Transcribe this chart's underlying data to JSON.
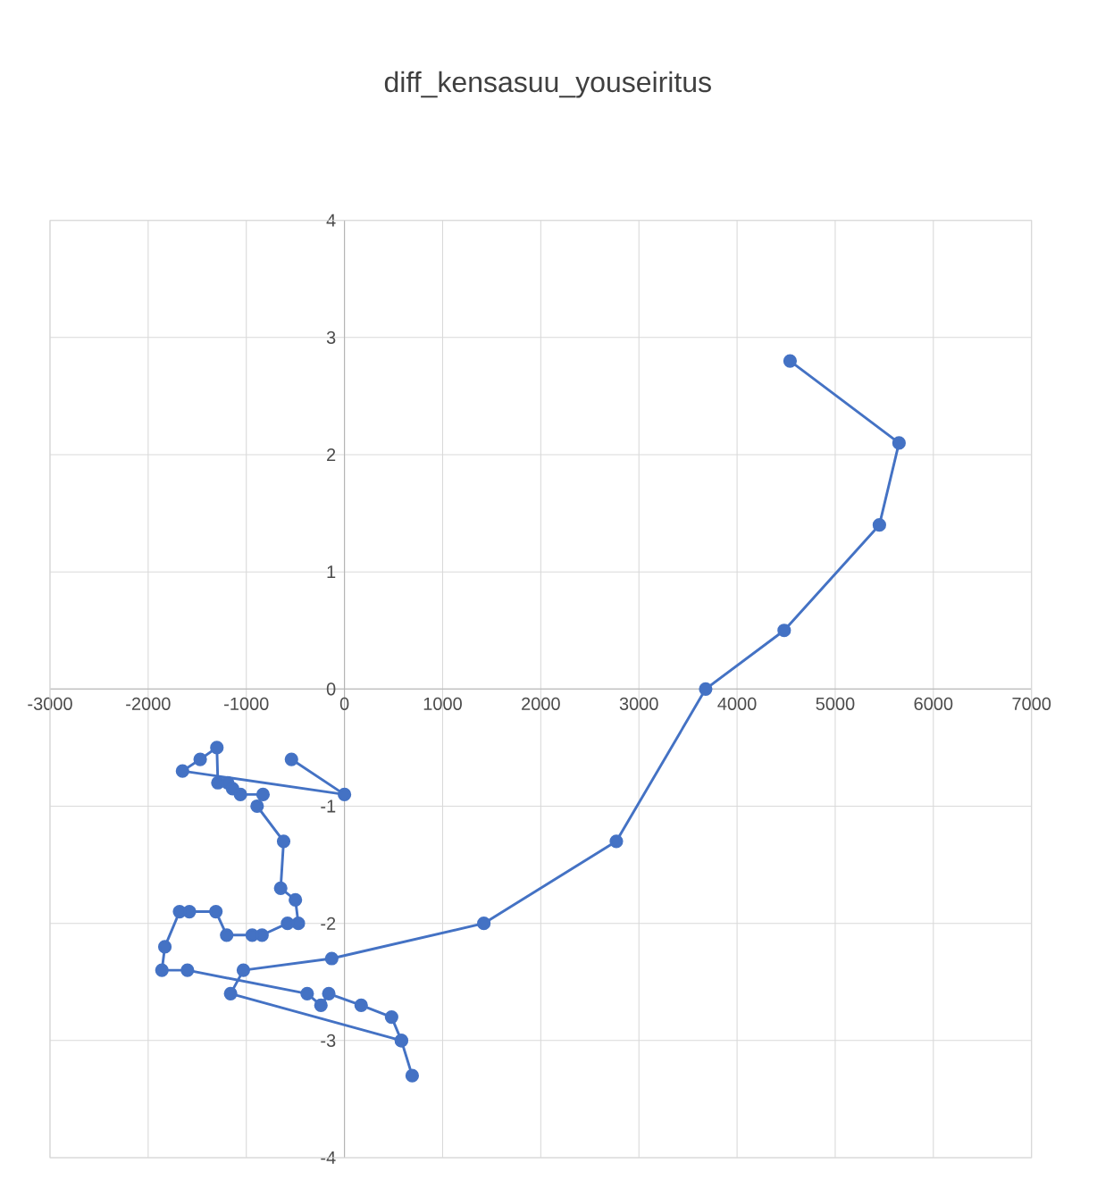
{
  "chart_data": {
    "type": "line",
    "title": "diff_kensasuu_youseiritus",
    "x": [
      -540,
      0,
      -1650,
      -1470,
      -1300,
      -1290,
      -1190,
      -1140,
      -1060,
      -830,
      -890,
      -620,
      -650,
      -500,
      -470,
      -580,
      -840,
      -940,
      -1200,
      -1310,
      -1580,
      -1680,
      -1830,
      -1860,
      -1600,
      -380,
      -240,
      -160,
      170,
      480,
      580,
      690,
      580,
      -1160,
      -1030,
      -130,
      1420,
      2770,
      3680,
      4480,
      5450,
      5650,
      4540
    ],
    "series": [
      {
        "color": "#4472c4",
        "values": [
          -0.6,
          -0.9,
          -0.7,
          -0.6,
          -0.5,
          -0.8,
          -0.8,
          -0.85,
          -0.9,
          -0.9,
          -1.0,
          -1.3,
          -1.7,
          -1.8,
          -2.0,
          -2.0,
          -2.1,
          -2.1,
          -2.1,
          -1.9,
          -1.9,
          -1.9,
          -2.2,
          -2.4,
          -2.4,
          -2.6,
          -2.7,
          -2.6,
          -2.7,
          -2.8,
          -3.0,
          -3.3,
          -3.0,
          -2.6,
          -2.4,
          -2.3,
          -2.0,
          -1.3,
          0.0,
          0.5,
          1.4,
          2.1,
          2.8
        ]
      }
    ],
    "xlim": [
      -3000,
      7000
    ],
    "xticks": [
      -3000,
      -2000,
      -1000,
      0,
      1000,
      2000,
      3000,
      4000,
      5000,
      6000,
      7000
    ],
    "ylim": [
      -4,
      4
    ],
    "yticks": [
      -4,
      -3,
      -2,
      -1,
      0,
      1,
      2,
      3,
      4
    ],
    "grid": true,
    "marker": "circle",
    "line_style": "solid"
  }
}
